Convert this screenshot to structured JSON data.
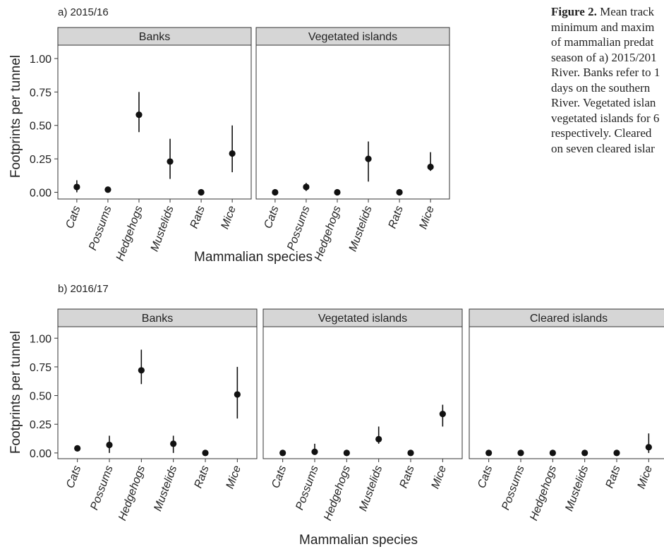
{
  "caption": {
    "lead": "Figure 2.",
    "lines": [
      " Mean track",
      "minimum and maxim",
      "of mammalian predat",
      "season of a) 2015/201",
      "River. Banks refer to 1",
      "days on the southern",
      "River. Vegetated islan",
      "vegetated islands for 6",
      "respectively. Cleared",
      "on seven cleared islar"
    ]
  },
  "chart_data": [
    {
      "type": "scatter",
      "panel_title": "a) 2015/16",
      "xlabel": "Mammalian species",
      "ylabel": "Footprints per tunnel",
      "ylim": [
        -0.05,
        1.1
      ],
      "yticks": [
        "0.00",
        "0.25",
        "0.50",
        "0.75",
        "1.00"
      ],
      "categories": [
        "Cats",
        "Possums",
        "Hedgehogs",
        "Mustelids",
        "Rats",
        "Mice"
      ],
      "grid": false,
      "facets": [
        {
          "name": "Banks",
          "mean": [
            0.04,
            0.02,
            0.58,
            0.23,
            0.0,
            0.29
          ],
          "min": [
            0.0,
            0.02,
            0.45,
            0.1,
            0.0,
            0.15
          ],
          "max": [
            0.09,
            0.02,
            0.75,
            0.4,
            0.0,
            0.5
          ]
        },
        {
          "name": "Vegetated islands",
          "mean": [
            0.0,
            0.04,
            0.0,
            0.25,
            0.0,
            0.19
          ],
          "min": [
            0.0,
            0.01,
            0.0,
            0.08,
            0.0,
            0.16
          ],
          "max": [
            0.0,
            0.07,
            0.0,
            0.38,
            0.0,
            0.3
          ]
        }
      ]
    },
    {
      "type": "scatter",
      "panel_title": "b) 2016/17",
      "xlabel": "Mammalian species",
      "ylabel": "Footprints per tunnel",
      "ylim": [
        -0.05,
        1.1
      ],
      "yticks": [
        "0.00",
        "0.25",
        "0.50",
        "0.75",
        "1.00"
      ],
      "categories": [
        "Cats",
        "Possums",
        "Hedgehogs",
        "Mustelids",
        "Rats",
        "Mice"
      ],
      "grid": false,
      "facets": [
        {
          "name": "Banks",
          "mean": [
            0.04,
            0.07,
            0.72,
            0.08,
            0.0,
            0.51
          ],
          "min": [
            0.02,
            0.0,
            0.6,
            0.0,
            0.0,
            0.3
          ],
          "max": [
            0.05,
            0.15,
            0.9,
            0.15,
            0.0,
            0.75
          ]
        },
        {
          "name": "Vegetated islands",
          "mean": [
            0.0,
            0.01,
            0.0,
            0.12,
            0.0,
            0.34
          ],
          "min": [
            0.0,
            0.0,
            0.0,
            0.08,
            0.0,
            0.23
          ],
          "max": [
            0.0,
            0.08,
            0.0,
            0.23,
            0.0,
            0.42
          ]
        },
        {
          "name": "Cleared islands",
          "mean": [
            0.0,
            0.0,
            0.0,
            0.0,
            0.0,
            0.05
          ],
          "min": [
            0.0,
            0.0,
            0.0,
            0.0,
            0.0,
            0.0
          ],
          "max": [
            0.0,
            0.0,
            0.0,
            0.0,
            0.0,
            0.17
          ]
        }
      ]
    }
  ]
}
